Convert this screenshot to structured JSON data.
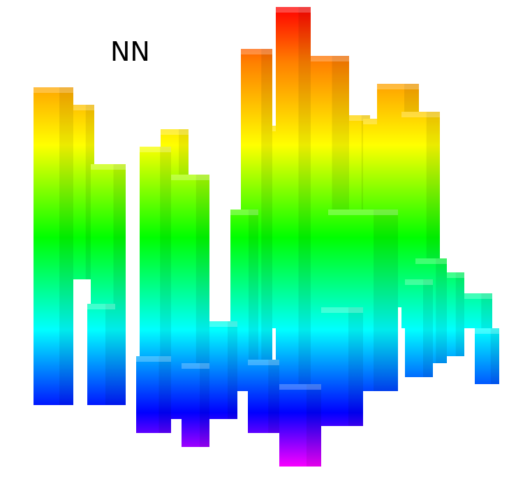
{
  "label": "NN",
  "colormap": [
    "#ff0000",
    "#ff8000",
    "#ffff00",
    "#00ff00",
    "#00ffff",
    "#0000ff",
    "#ff00ff"
  ]
}
